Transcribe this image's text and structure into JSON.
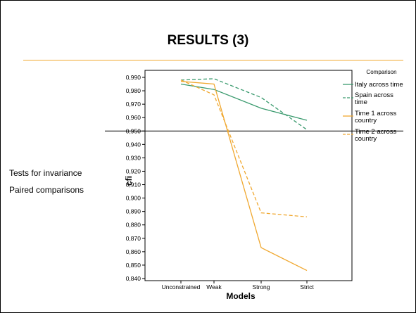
{
  "slide": {
    "title": "RESULTS (3)",
    "side_text": [
      "Tests for invariance",
      "Paired comparisons"
    ]
  },
  "chart_data": {
    "type": "line",
    "categories": [
      "Unconstrained",
      "Weak",
      "Strong",
      "Strict"
    ],
    "xlabel": "Models",
    "ylabel": "cfi",
    "ylim": [
      0.84,
      0.99
    ],
    "yticks": [
      "0,840",
      "0,850",
      "0,860",
      "0,870",
      "0,880",
      "0,890",
      "0,900",
      "0,910",
      "0,920",
      "0,930",
      "0,940",
      "0,950",
      "0,960",
      "0,970",
      "0,980",
      "0,990"
    ],
    "reference_line": 0.95,
    "legend_title": "Comparison",
    "legend_position": "right",
    "series": [
      {
        "name": "Italy across time",
        "values": [
          0.985,
          0.981,
          0.967,
          0.958
        ],
        "color": "#3a9a6e",
        "dash": "solid"
      },
      {
        "name": "Spain across time",
        "values": [
          0.988,
          0.989,
          0.975,
          0.951
        ],
        "color": "#3a9a6e",
        "dash": "dashed"
      },
      {
        "name": "Time 1 across country",
        "values": [
          0.987,
          0.985,
          0.863,
          0.846
        ],
        "color": "#f0a830",
        "dash": "solid"
      },
      {
        "name": "Time 2 across country",
        "values": [
          0.988,
          0.977,
          0.889,
          0.886
        ],
        "color": "#f0a830",
        "dash": "dashed"
      }
    ]
  }
}
